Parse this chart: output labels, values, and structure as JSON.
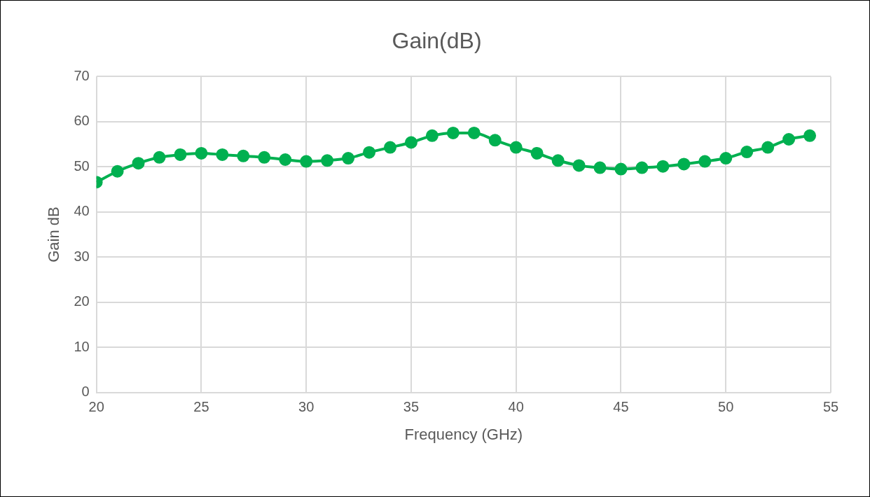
{
  "chart_data": {
    "type": "line",
    "title": "Gain(dB)",
    "xlabel": "Frequency (GHz)",
    "ylabel": "Gain dB",
    "x": [
      20,
      21,
      22,
      23,
      24,
      25,
      26,
      27,
      28,
      29,
      30,
      31,
      32,
      33,
      34,
      35,
      36,
      37,
      38,
      39,
      40,
      41,
      42,
      43,
      44,
      45,
      46,
      47,
      48,
      49,
      50,
      51,
      52,
      53,
      54
    ],
    "series": [
      {
        "color": "#00b050",
        "values": [
          46.6,
          49.0,
          50.8,
          52.1,
          52.7,
          53.0,
          52.7,
          52.4,
          52.1,
          51.6,
          51.2,
          51.4,
          51.9,
          53.2,
          54.3,
          55.4,
          56.9,
          57.5,
          57.5,
          55.9,
          54.3,
          53.0,
          51.4,
          50.3,
          49.8,
          49.5,
          49.8,
          50.1,
          50.6,
          51.2,
          51.9,
          53.3,
          54.3,
          56.1,
          56.9
        ]
      }
    ],
    "xlim": [
      20,
      55
    ],
    "xticks": [
      20,
      25,
      30,
      35,
      40,
      45,
      50,
      55
    ],
    "ylim": [
      0,
      70
    ],
    "yticks": [
      0,
      10,
      20,
      30,
      40,
      50,
      60,
      70
    ],
    "grid": true,
    "marker": "circle",
    "line_style": "solid",
    "legend": false
  }
}
